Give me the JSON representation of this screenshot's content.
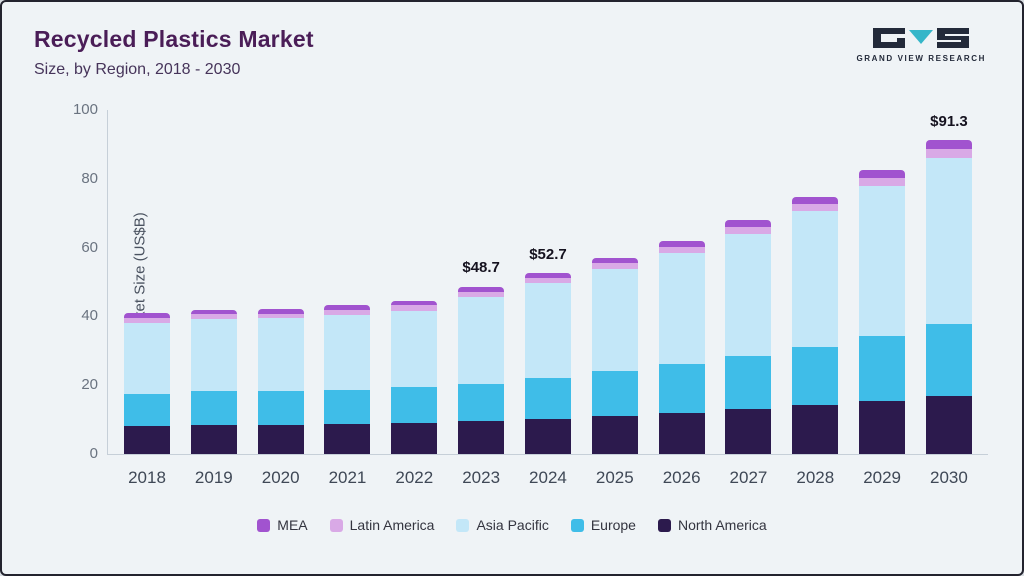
{
  "header": {
    "title": "Recycled Plastics Market",
    "subtitle": "Size, by Region, 2018 - 2030"
  },
  "logo": {
    "text": "GRAND VIEW RESEARCH"
  },
  "chart_data": {
    "type": "bar",
    "stacked": true,
    "title": "Recycled Plastics Market Size, by Region, 2018 - 2030",
    "xlabel": "",
    "ylabel": "Market Size (US$B)",
    "ylim": [
      0,
      100
    ],
    "yticks": [
      0,
      20,
      40,
      60,
      80,
      100
    ],
    "grid": false,
    "legend_position": "bottom",
    "categories": [
      "2018",
      "2019",
      "2020",
      "2021",
      "2022",
      "2023",
      "2024",
      "2025",
      "2026",
      "2027",
      "2028",
      "2029",
      "2030"
    ],
    "series": [
      {
        "name": "North America",
        "color": "#2c1a4d",
        "values": [
          8.0,
          8.3,
          8.4,
          8.7,
          9.0,
          9.5,
          10.1,
          11.0,
          12.0,
          13.1,
          14.2,
          15.4,
          16.9
        ]
      },
      {
        "name": "Europe",
        "color": "#3fbde8",
        "values": [
          9.4,
          10.0,
          9.8,
          9.9,
          10.4,
          11.0,
          11.9,
          13.0,
          14.1,
          15.4,
          16.9,
          18.9,
          21.0
        ]
      },
      {
        "name": "Asia Pacific",
        "color": "#c3e7f8",
        "values": [
          20.6,
          20.9,
          21.2,
          21.7,
          22.3,
          25.2,
          27.6,
          29.8,
          32.3,
          35.6,
          39.5,
          43.6,
          48.2
        ]
      },
      {
        "name": "Latin America",
        "color": "#d9a9e6",
        "values": [
          1.5,
          1.4,
          1.4,
          1.5,
          1.5,
          1.5,
          1.6,
          1.7,
          1.8,
          2.0,
          2.2,
          2.3,
          2.6
        ]
      },
      {
        "name": "MEA",
        "color": "#a153cf",
        "values": [
          1.5,
          1.4,
          1.4,
          1.4,
          1.4,
          1.5,
          1.5,
          1.5,
          1.6,
          1.9,
          2.0,
          2.3,
          2.6
        ]
      }
    ],
    "totals": [
      41.0,
      42.0,
      42.2,
      43.2,
      44.6,
      48.7,
      52.7,
      57.0,
      61.8,
      68.0,
      74.8,
      82.5,
      91.3
    ],
    "annotations": [
      {
        "year": "2023",
        "label": "$48.7"
      },
      {
        "year": "2024",
        "label": "$52.7"
      },
      {
        "year": "2030",
        "label": "$91.3"
      }
    ]
  }
}
